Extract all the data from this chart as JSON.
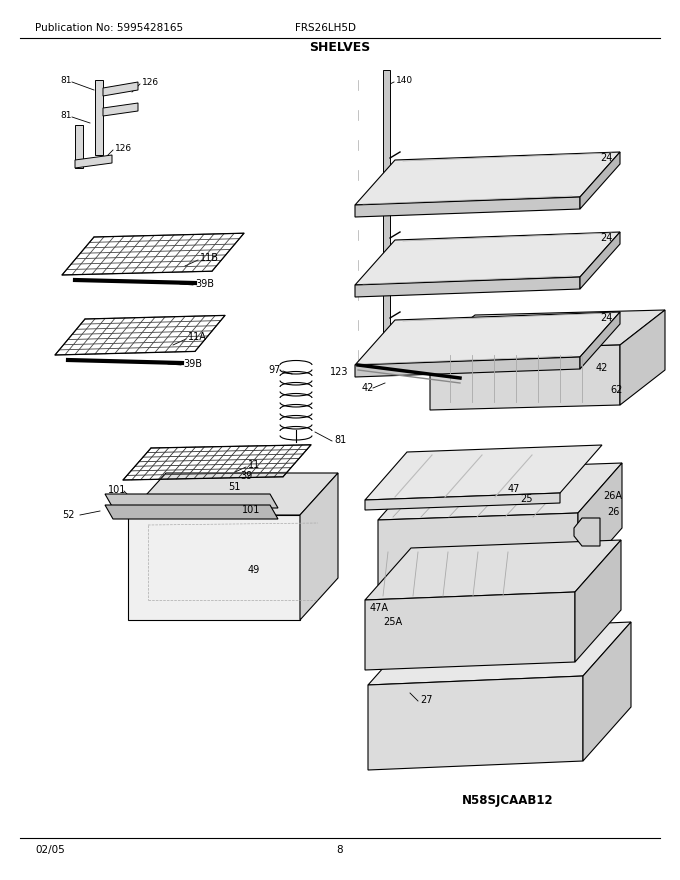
{
  "title": "SHELVES",
  "pub_no": "Publication No: 5995428165",
  "model": "FRS26LH5D",
  "date": "02/05",
  "page": "8",
  "diagram_id": "N58SJCAAB12",
  "bg_color": "#ffffff",
  "line_color": "#000000",
  "gray_color": "#888888"
}
